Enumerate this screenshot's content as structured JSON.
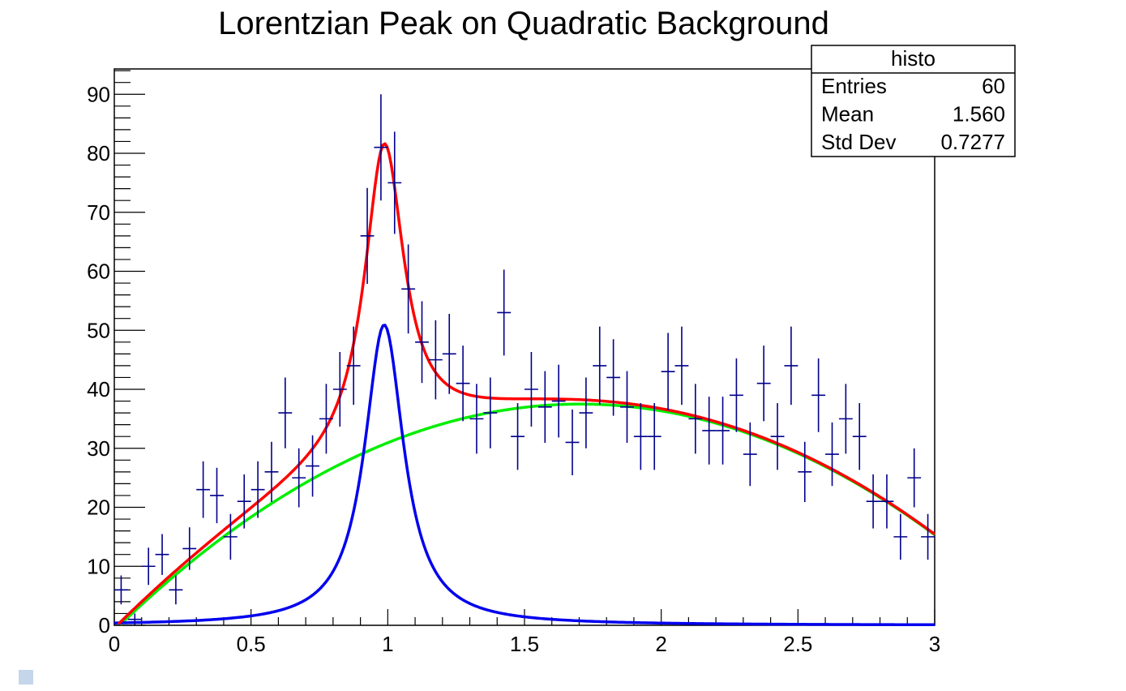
{
  "chart_data": {
    "type": "histogram",
    "title": "Lorentzian Peak on Quadratic Background",
    "xlabel": "",
    "ylabel": "",
    "xlim": [
      0,
      3
    ],
    "ylim": [
      0,
      95
    ],
    "x_ticks": [
      0,
      0.5,
      1,
      1.5,
      2,
      2.5,
      3
    ],
    "x_tick_labels": [
      "0",
      "0.5",
      "1",
      "1.5",
      "2",
      "2.5",
      "3"
    ],
    "y_ticks": [
      0,
      10,
      20,
      30,
      40,
      50,
      60,
      70,
      80,
      90
    ],
    "y_tick_labels": [
      "0",
      "10",
      "20",
      "30",
      "40",
      "50",
      "60",
      "70",
      "80",
      "90"
    ],
    "bin_width": 0.05,
    "bin_centers": [
      0.025,
      0.075,
      0.125,
      0.175,
      0.225,
      0.275,
      0.325,
      0.375,
      0.425,
      0.475,
      0.525,
      0.575,
      0.625,
      0.675,
      0.725,
      0.775,
      0.825,
      0.875,
      0.925,
      0.975,
      1.025,
      1.075,
      1.125,
      1.175,
      1.225,
      1.275,
      1.325,
      1.375,
      1.425,
      1.475,
      1.525,
      1.575,
      1.625,
      1.675,
      1.725,
      1.775,
      1.825,
      1.875,
      1.925,
      1.975,
      2.025,
      2.075,
      2.125,
      2.175,
      2.225,
      2.275,
      2.325,
      2.375,
      2.425,
      2.475,
      2.525,
      2.575,
      2.625,
      2.675,
      2.725,
      2.775,
      2.825,
      2.875,
      2.925,
      2.975
    ],
    "bin_contents": [
      6,
      1,
      10,
      12,
      6,
      13,
      23,
      22,
      15,
      21,
      23,
      26,
      36,
      25,
      27,
      35,
      40,
      44,
      66,
      81,
      75,
      57,
      48,
      45,
      46,
      41,
      35,
      36,
      53,
      32,
      40,
      37,
      38,
      31,
      36,
      44,
      42,
      37,
      32,
      32,
      43,
      44,
      35,
      33,
      33,
      39,
      29,
      41,
      32,
      44,
      26,
      39,
      29,
      35,
      32,
      21,
      21,
      15,
      25,
      15
    ],
    "error_style": "sqrt",
    "series": [
      {
        "name": "histo",
        "type": "errorbars",
        "color": "#00008b"
      },
      {
        "name": "",
        "type": "function",
        "role": "total",
        "color": "#ff0000",
        "width": 3.5
      },
      {
        "name": "",
        "type": "function",
        "role": "background",
        "color": "#00ee00",
        "width": 3.5
      },
      {
        "name": "",
        "type": "function",
        "role": "peak",
        "color": "#0000ee",
        "width": 3.5
      }
    ],
    "functions": {
      "background": {
        "form": "quadratic",
        "p0": -0.86,
        "p1": 45.0,
        "p2": -13.2
      },
      "peak": {
        "form": "lorentzian",
        "area": 14.0,
        "width": 0.175,
        "mean": 0.987
      }
    },
    "stats_box": {
      "title": "histo",
      "rows": [
        {
          "label": "Entries",
          "value": "60"
        },
        {
          "label": "Mean",
          "value": "1.560"
        },
        {
          "label": "Std Dev",
          "value": "0.7277"
        }
      ]
    }
  }
}
